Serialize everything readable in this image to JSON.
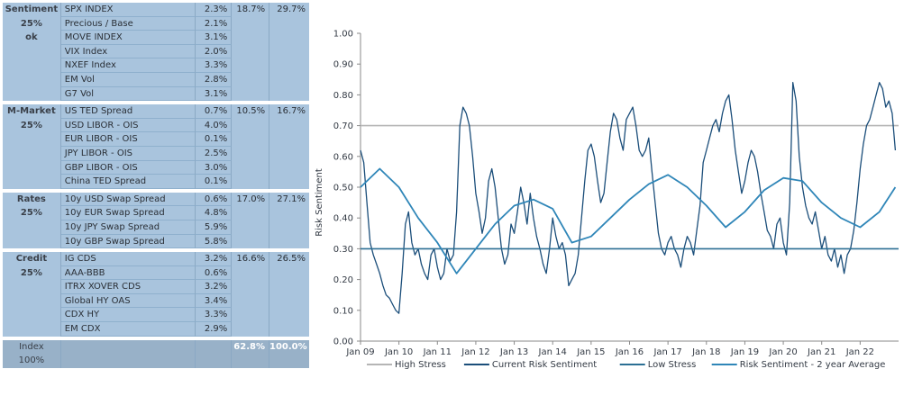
{
  "table": {
    "sections": [
      {
        "name": "Sentiment",
        "weight": "25%",
        "status": "ok",
        "score": "18.7%",
        "threshold": "29.7%",
        "rows": [
          {
            "label": "SPX INDEX",
            "value": "2.3%"
          },
          {
            "label": "Precious / Base",
            "value": "2.1%"
          },
          {
            "label": "MOVE INDEX",
            "value": "3.1%"
          },
          {
            "label": "VIX Index",
            "value": "2.0%"
          },
          {
            "label": "NXEF Index",
            "value": "3.3%"
          },
          {
            "label": "EM Vol",
            "value": "2.8%"
          },
          {
            "label": "G7 Vol",
            "value": "3.1%"
          }
        ]
      },
      {
        "name": "M-Market",
        "weight": "25%",
        "status": "",
        "score": "10.5%",
        "threshold": "16.7%",
        "rows": [
          {
            "label": "US TED Spread",
            "value": "0.7%"
          },
          {
            "label": "USD LIBOR - OIS",
            "value": "4.0%"
          },
          {
            "label": "EUR LIBOR - OIS",
            "value": "0.1%"
          },
          {
            "label": "JPY LIBOR - OIS",
            "value": "2.5%"
          },
          {
            "label": "GBP LIBOR - OIS",
            "value": "3.0%"
          },
          {
            "label": "China TED Spread",
            "value": "0.1%"
          }
        ]
      },
      {
        "name": "Rates",
        "weight": "25%",
        "status": "",
        "score": "17.0%",
        "threshold": "27.1%",
        "rows": [
          {
            "label": "10y USD Swap Spread",
            "value": "0.6%"
          },
          {
            "label": "10y EUR Swap Spread",
            "value": "4.8%"
          },
          {
            "label": "10y JPY Swap Spread",
            "value": "5.9%"
          },
          {
            "label": "10y GBP Swap Spread",
            "value": "5.8%"
          }
        ]
      },
      {
        "name": "Credit",
        "weight": "25%",
        "status": "",
        "score": "16.6%",
        "threshold": "26.5%",
        "rows": [
          {
            "label": "IG CDS",
            "value": "3.2%"
          },
          {
            "label": "AAA-BBB",
            "value": "0.6%"
          },
          {
            "label": "ITRX XOVER CDS",
            "value": "3.2%"
          },
          {
            "label": "Global HY OAS",
            "value": "3.4%"
          },
          {
            "label": "CDX HY",
            "value": "3.3%"
          },
          {
            "label": "EM CDX",
            "value": "2.9%"
          }
        ]
      }
    ],
    "index": {
      "name": "Index",
      "weight": "100%",
      "score": "62.8%",
      "threshold": "100.0%"
    }
  },
  "chart_data": {
    "type": "line",
    "ylabel": "Risk Sentiment",
    "xlabel": "",
    "ylim": [
      0.0,
      1.0
    ],
    "yticks": [
      "0.00",
      "0.10",
      "0.20",
      "0.30",
      "0.40",
      "0.50",
      "0.60",
      "0.70",
      "0.80",
      "0.90",
      "1.00"
    ],
    "xticks": [
      "Jan 09",
      "Jan 10",
      "Jan 11",
      "Jan 12",
      "Jan 13",
      "Jan 14",
      "Jan 15",
      "Jan 16",
      "Jan 17",
      "Jan 18",
      "Jan 19",
      "Jan 20",
      "Jan 21",
      "Jan 22"
    ],
    "x_range": [
      "2009-01",
      "2022-12"
    ],
    "grid": false,
    "legend_position": "bottom",
    "colors": {
      "high_stress": "#b5b5b5",
      "current": "#1b4e7a",
      "low_stress": "#2b6f94",
      "average": "#2f86b8"
    },
    "series": [
      {
        "name": "High Stress",
        "type": "constant",
        "value": 0.7
      },
      {
        "name": "Current Risk Sentiment",
        "x": [
          "2009-01",
          "2009-02",
          "2009-03",
          "2009-04",
          "2009-05",
          "2009-06",
          "2009-07",
          "2009-08",
          "2009-09",
          "2009-10",
          "2009-11",
          "2009-12",
          "2010-01",
          "2010-02",
          "2010-03",
          "2010-04",
          "2010-05",
          "2010-06",
          "2010-07",
          "2010-08",
          "2010-09",
          "2010-10",
          "2010-11",
          "2010-12",
          "2011-01",
          "2011-02",
          "2011-03",
          "2011-04",
          "2011-05",
          "2011-06",
          "2011-07",
          "2011-08",
          "2011-09",
          "2011-10",
          "2011-11",
          "2011-12",
          "2012-01",
          "2012-02",
          "2012-03",
          "2012-04",
          "2012-05",
          "2012-06",
          "2012-07",
          "2012-08",
          "2012-09",
          "2012-10",
          "2012-11",
          "2012-12",
          "2013-01",
          "2013-02",
          "2013-03",
          "2013-04",
          "2013-05",
          "2013-06",
          "2013-07",
          "2013-08",
          "2013-09",
          "2013-10",
          "2013-11",
          "2013-12",
          "2014-01",
          "2014-02",
          "2014-03",
          "2014-04",
          "2014-05",
          "2014-06",
          "2014-07",
          "2014-08",
          "2014-09",
          "2014-10",
          "2014-11",
          "2014-12",
          "2015-01",
          "2015-02",
          "2015-03",
          "2015-04",
          "2015-05",
          "2015-06",
          "2015-07",
          "2015-08",
          "2015-09",
          "2015-10",
          "2015-11",
          "2015-12",
          "2016-01",
          "2016-02",
          "2016-03",
          "2016-04",
          "2016-05",
          "2016-06",
          "2016-07",
          "2016-08",
          "2016-09",
          "2016-10",
          "2016-11",
          "2016-12",
          "2017-01",
          "2017-02",
          "2017-03",
          "2017-04",
          "2017-05",
          "2017-06",
          "2017-07",
          "2017-08",
          "2017-09",
          "2017-10",
          "2017-11",
          "2017-12",
          "2018-01",
          "2018-02",
          "2018-03",
          "2018-04",
          "2018-05",
          "2018-06",
          "2018-07",
          "2018-08",
          "2018-09",
          "2018-10",
          "2018-11",
          "2018-12",
          "2019-01",
          "2019-02",
          "2019-03",
          "2019-04",
          "2019-05",
          "2019-06",
          "2019-07",
          "2019-08",
          "2019-09",
          "2019-10",
          "2019-11",
          "2019-12",
          "2020-01",
          "2020-02",
          "2020-03",
          "2020-04",
          "2020-05",
          "2020-06",
          "2020-07",
          "2020-08",
          "2020-09",
          "2020-10",
          "2020-11",
          "2020-12",
          "2021-01",
          "2021-02",
          "2021-03",
          "2021-04",
          "2021-05",
          "2021-06",
          "2021-07",
          "2021-08",
          "2021-09",
          "2021-10",
          "2021-11",
          "2021-12",
          "2022-01",
          "2022-02",
          "2022-03",
          "2022-04",
          "2022-05",
          "2022-06",
          "2022-07",
          "2022-08",
          "2022-09",
          "2022-10",
          "2022-11",
          "2022-12"
        ],
        "values": [
          0.62,
          0.58,
          0.45,
          0.32,
          0.28,
          0.25,
          0.22,
          0.18,
          0.15,
          0.14,
          0.12,
          0.1,
          0.09,
          0.22,
          0.38,
          0.42,
          0.32,
          0.28,
          0.3,
          0.25,
          0.22,
          0.2,
          0.28,
          0.3,
          0.24,
          0.2,
          0.22,
          0.3,
          0.26,
          0.28,
          0.42,
          0.7,
          0.76,
          0.74,
          0.7,
          0.6,
          0.48,
          0.42,
          0.35,
          0.4,
          0.52,
          0.56,
          0.5,
          0.4,
          0.3,
          0.25,
          0.28,
          0.38,
          0.35,
          0.42,
          0.5,
          0.45,
          0.38,
          0.48,
          0.4,
          0.34,
          0.3,
          0.25,
          0.22,
          0.3,
          0.4,
          0.34,
          0.3,
          0.32,
          0.28,
          0.18,
          0.2,
          0.22,
          0.28,
          0.4,
          0.52,
          0.62,
          0.64,
          0.6,
          0.52,
          0.45,
          0.48,
          0.58,
          0.68,
          0.74,
          0.72,
          0.66,
          0.62,
          0.72,
          0.74,
          0.76,
          0.7,
          0.62,
          0.6,
          0.62,
          0.66,
          0.55,
          0.45,
          0.35,
          0.3,
          0.28,
          0.32,
          0.34,
          0.3,
          0.28,
          0.24,
          0.3,
          0.34,
          0.32,
          0.28,
          0.36,
          0.44,
          0.58,
          0.62,
          0.66,
          0.7,
          0.72,
          0.68,
          0.74,
          0.78,
          0.8,
          0.72,
          0.62,
          0.55,
          0.48,
          0.52,
          0.58,
          0.62,
          0.6,
          0.55,
          0.48,
          0.42,
          0.36,
          0.34,
          0.3,
          0.38,
          0.4,
          0.32,
          0.28,
          0.45,
          0.84,
          0.78,
          0.6,
          0.5,
          0.44,
          0.4,
          0.38,
          0.42,
          0.36,
          0.3,
          0.34,
          0.28,
          0.26,
          0.3,
          0.24,
          0.28,
          0.22,
          0.28,
          0.3,
          0.36,
          0.45,
          0.56,
          0.64,
          0.7,
          0.72,
          0.76,
          0.8,
          0.84,
          0.82,
          0.76,
          0.78,
          0.74,
          0.62
        ]
      },
      {
        "name": "Low Stress",
        "type": "constant",
        "value": 0.3
      },
      {
        "name": "Risk Sentiment - 2 year Average",
        "x": [
          "2009-01",
          "2009-07",
          "2010-01",
          "2010-07",
          "2011-01",
          "2011-07",
          "2012-01",
          "2012-07",
          "2013-01",
          "2013-07",
          "2014-01",
          "2014-07",
          "2015-01",
          "2015-07",
          "2016-01",
          "2016-07",
          "2017-01",
          "2017-07",
          "2018-01",
          "2018-07",
          "2019-01",
          "2019-07",
          "2020-01",
          "2020-07",
          "2021-01",
          "2021-07",
          "2022-01",
          "2022-07",
          "2022-12"
        ],
        "values": [
          0.5,
          0.56,
          0.5,
          0.4,
          0.32,
          0.22,
          0.3,
          0.38,
          0.44,
          0.46,
          0.43,
          0.32,
          0.34,
          0.4,
          0.46,
          0.51,
          0.54,
          0.5,
          0.44,
          0.37,
          0.42,
          0.49,
          0.53,
          0.52,
          0.45,
          0.4,
          0.37,
          0.42,
          0.5
        ]
      }
    ]
  }
}
